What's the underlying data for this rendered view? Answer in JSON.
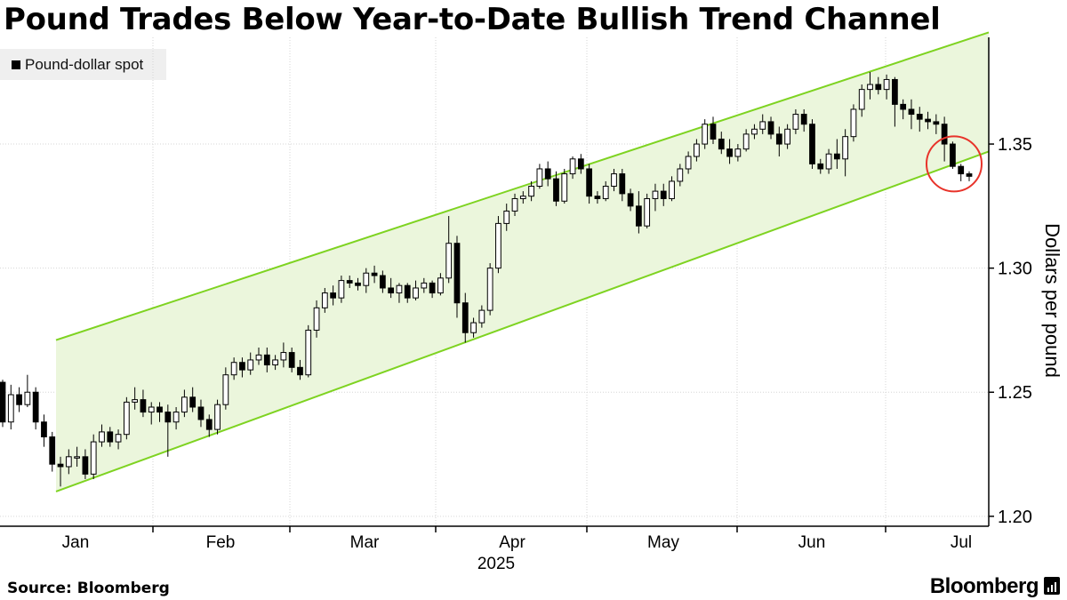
{
  "title": "Pound Trades Below Year-to-Date Bullish Trend Channel",
  "legend": {
    "label": "Pound-dollar spot",
    "color": "#000000"
  },
  "source": "Source: Bloomberg",
  "brand": "Bloomberg",
  "brand_icon": "bloomberg-terminal-icon",
  "colors": {
    "channel_line": "#7ed321",
    "channel_fill": "#ebf6dc",
    "candle_up_fill": "#ffffff",
    "candle_down_fill": "#000000",
    "candle_stroke": "#000000",
    "highlight_circle": "#e8332a",
    "grid": "#d6d6d6"
  },
  "chart_data": {
    "type": "candlestick",
    "title": "Pound Trades Below Year-to-Date Bullish Trend Channel",
    "series_name": "Pound-dollar spot",
    "ylabel": "Dollars per pound",
    "y_axis_side": "right",
    "ylim": [
      1.196,
      1.393
    ],
    "yticks": [
      1.2,
      1.25,
      1.3,
      1.35
    ],
    "ytick_labels": [
      "1.20",
      "1.25",
      "1.30",
      "1.35"
    ],
    "x_axis": {
      "year_label": "2025",
      "months": [
        {
          "label": "Jan"
        },
        {
          "label": "Feb"
        },
        {
          "label": "Mar"
        },
        {
          "label": "Apr"
        },
        {
          "label": "May"
        },
        {
          "label": "Jun"
        },
        {
          "label": "Jul"
        }
      ]
    },
    "grid": true,
    "legend_position": "top-left",
    "channel": {
      "upper": {
        "start": 1.271,
        "end": 1.395
      },
      "lower": {
        "start": 1.21,
        "end": 1.347
      }
    },
    "annotation": {
      "type": "circle",
      "note": "price breaks below lower channel line",
      "value": 1.342
    },
    "candles": [
      [
        1.254,
        1.255,
        1.236,
        1.238
      ],
      [
        1.238,
        1.253,
        1.235,
        1.249
      ],
      [
        1.249,
        1.252,
        1.242,
        1.245
      ],
      [
        1.245,
        1.257,
        1.244,
        1.25
      ],
      [
        1.25,
        1.252,
        1.235,
        1.238
      ],
      [
        1.238,
        1.241,
        1.228,
        1.232
      ],
      [
        1.232,
        1.234,
        1.218,
        1.221
      ],
      [
        1.221,
        1.224,
        1.212,
        1.22
      ],
      [
        1.22,
        1.227,
        1.217,
        1.224
      ],
      [
        1.224,
        1.228,
        1.22,
        1.224
      ],
      [
        1.224,
        1.227,
        1.215,
        1.217
      ],
      [
        1.217,
        1.233,
        1.215,
        1.23
      ],
      [
        1.23,
        1.237,
        1.228,
        1.234
      ],
      [
        1.234,
        1.236,
        1.228,
        1.23
      ],
      [
        1.23,
        1.235,
        1.227,
        1.233
      ],
      [
        1.233,
        1.248,
        1.231,
        1.246
      ],
      [
        1.246,
        1.252,
        1.243,
        1.247
      ],
      [
        1.247,
        1.251,
        1.24,
        1.242
      ],
      [
        1.242,
        1.246,
        1.237,
        1.244
      ],
      [
        1.244,
        1.246,
        1.238,
        1.242
      ],
      [
        1.242,
        1.245,
        1.224,
        1.238
      ],
      [
        1.238,
        1.244,
        1.235,
        1.242
      ],
      [
        1.242,
        1.251,
        1.24,
        1.248
      ],
      [
        1.248,
        1.252,
        1.242,
        1.244
      ],
      [
        1.244,
        1.247,
        1.236,
        1.239
      ],
      [
        1.239,
        1.241,
        1.232,
        1.235
      ],
      [
        1.235,
        1.247,
        1.233,
        1.245
      ],
      [
        1.245,
        1.26,
        1.243,
        1.257
      ],
      [
        1.257,
        1.264,
        1.255,
        1.262
      ],
      [
        1.262,
        1.264,
        1.256,
        1.259
      ],
      [
        1.259,
        1.266,
        1.257,
        1.263
      ],
      [
        1.263,
        1.268,
        1.261,
        1.265
      ],
      [
        1.265,
        1.268,
        1.258,
        1.261
      ],
      [
        1.261,
        1.265,
        1.259,
        1.263
      ],
      [
        1.263,
        1.27,
        1.26,
        1.266
      ],
      [
        1.266,
        1.268,
        1.258,
        1.26
      ],
      [
        1.26,
        1.263,
        1.255,
        1.257
      ],
      [
        1.257,
        1.277,
        1.256,
        1.275
      ],
      [
        1.275,
        1.287,
        1.272,
        1.284
      ],
      [
        1.284,
        1.292,
        1.282,
        1.29
      ],
      [
        1.29,
        1.293,
        1.285,
        1.288
      ],
      [
        1.288,
        1.297,
        1.286,
        1.295
      ],
      [
        1.295,
        1.297,
        1.292,
        1.294
      ],
      [
        1.294,
        1.296,
        1.291,
        1.293
      ],
      [
        1.293,
        1.3,
        1.29,
        1.298
      ],
      [
        1.298,
        1.301,
        1.294,
        1.297
      ],
      [
        1.297,
        1.299,
        1.29,
        1.292
      ],
      [
        1.292,
        1.296,
        1.288,
        1.29
      ],
      [
        1.29,
        1.294,
        1.286,
        1.293
      ],
      [
        1.293,
        1.294,
        1.286,
        1.288
      ],
      [
        1.288,
        1.295,
        1.287,
        1.292
      ],
      [
        1.292,
        1.296,
        1.29,
        1.294
      ],
      [
        1.294,
        1.295,
        1.288,
        1.29
      ],
      [
        1.29,
        1.298,
        1.289,
        1.296
      ],
      [
        1.296,
        1.321,
        1.294,
        1.31
      ],
      [
        1.31,
        1.313,
        1.28,
        1.286
      ],
      [
        1.286,
        1.29,
        1.27,
        1.274
      ],
      [
        1.274,
        1.28,
        1.272,
        1.278
      ],
      [
        1.278,
        1.285,
        1.276,
        1.283
      ],
      [
        1.283,
        1.302,
        1.281,
        1.3
      ],
      [
        1.3,
        1.321,
        1.298,
        1.318
      ],
      [
        1.318,
        1.326,
        1.315,
        1.323
      ],
      [
        1.323,
        1.33,
        1.321,
        1.328
      ],
      [
        1.328,
        1.331,
        1.326,
        1.329
      ],
      [
        1.329,
        1.335,
        1.327,
        1.333
      ],
      [
        1.333,
        1.342,
        1.332,
        1.34
      ],
      [
        1.34,
        1.343,
        1.333,
        1.336
      ],
      [
        1.336,
        1.339,
        1.325,
        1.327
      ],
      [
        1.327,
        1.34,
        1.326,
        1.338
      ],
      [
        1.338,
        1.345,
        1.336,
        1.344
      ],
      [
        1.344,
        1.346,
        1.338,
        1.34
      ],
      [
        1.34,
        1.342,
        1.326,
        1.329
      ],
      [
        1.329,
        1.331,
        1.326,
        1.328
      ],
      [
        1.328,
        1.335,
        1.327,
        1.333
      ],
      [
        1.333,
        1.34,
        1.331,
        1.338
      ],
      [
        1.338,
        1.34,
        1.327,
        1.33
      ],
      [
        1.33,
        1.332,
        1.323,
        1.325
      ],
      [
        1.325,
        1.331,
        1.314,
        1.317
      ],
      [
        1.317,
        1.33,
        1.316,
        1.328
      ],
      [
        1.328,
        1.334,
        1.323,
        1.331
      ],
      [
        1.331,
        1.334,
        1.325,
        1.328
      ],
      [
        1.328,
        1.337,
        1.327,
        1.335
      ],
      [
        1.335,
        1.342,
        1.333,
        1.34
      ],
      [
        1.34,
        1.347,
        1.338,
        1.345
      ],
      [
        1.345,
        1.352,
        1.343,
        1.35
      ],
      [
        1.35,
        1.36,
        1.348,
        1.358
      ],
      [
        1.358,
        1.361,
        1.35,
        1.352
      ],
      [
        1.352,
        1.355,
        1.346,
        1.348
      ],
      [
        1.348,
        1.352,
        1.342,
        1.345
      ],
      [
        1.345,
        1.35,
        1.343,
        1.348
      ],
      [
        1.348,
        1.356,
        1.347,
        1.354
      ],
      [
        1.354,
        1.358,
        1.352,
        1.356
      ],
      [
        1.356,
        1.362,
        1.354,
        1.359
      ],
      [
        1.359,
        1.361,
        1.352,
        1.354
      ],
      [
        1.354,
        1.357,
        1.345,
        1.35
      ],
      [
        1.35,
        1.358,
        1.348,
        1.356
      ],
      [
        1.356,
        1.364,
        1.354,
        1.362
      ],
      [
        1.362,
        1.364,
        1.355,
        1.358
      ],
      [
        1.358,
        1.36,
        1.34,
        1.342
      ],
      [
        1.342,
        1.344,
        1.338,
        1.34
      ],
      [
        1.34,
        1.348,
        1.338,
        1.346
      ],
      [
        1.346,
        1.352,
        1.34,
        1.344
      ],
      [
        1.344,
        1.356,
        1.337,
        1.353
      ],
      [
        1.353,
        1.366,
        1.351,
        1.364
      ],
      [
        1.364,
        1.374,
        1.361,
        1.372
      ],
      [
        1.372,
        1.379,
        1.368,
        1.374
      ],
      [
        1.374,
        1.377,
        1.37,
        1.372
      ],
      [
        1.372,
        1.378,
        1.368,
        1.376
      ],
      [
        1.376,
        1.377,
        1.357,
        1.366
      ],
      [
        1.366,
        1.368,
        1.36,
        1.364
      ],
      [
        1.364,
        1.368,
        1.356,
        1.362
      ],
      [
        1.362,
        1.365,
        1.355,
        1.36
      ],
      [
        1.36,
        1.363,
        1.356,
        1.359
      ],
      [
        1.359,
        1.362,
        1.354,
        1.358
      ],
      [
        1.358,
        1.361,
        1.343,
        1.35
      ],
      [
        1.35,
        1.351,
        1.34,
        1.341
      ],
      [
        1.341,
        1.342,
        1.335,
        1.338
      ],
      [
        1.338,
        1.339,
        1.335,
        1.337
      ]
    ]
  }
}
